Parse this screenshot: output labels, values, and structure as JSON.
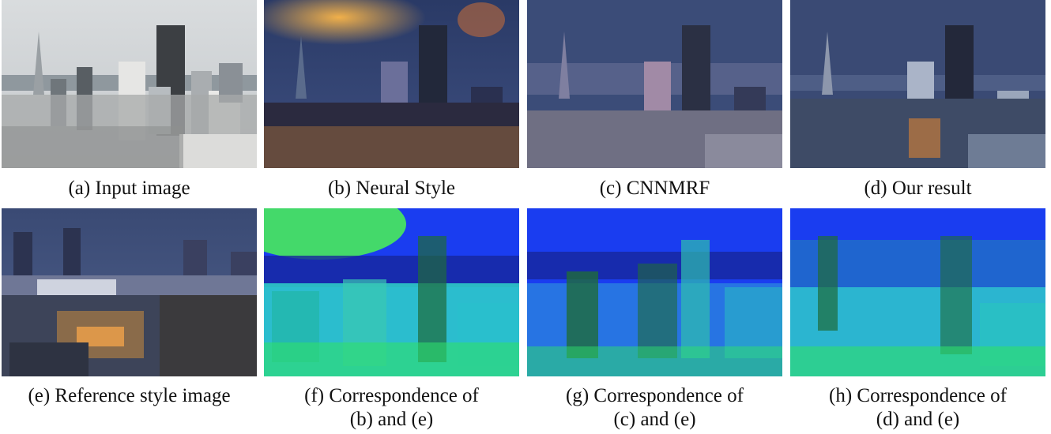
{
  "figure": {
    "panels": [
      {
        "id": "a",
        "caption": [
          "(a) Input image"
        ],
        "kind": "photo",
        "tone": "day"
      },
      {
        "id": "b",
        "caption": [
          "(b) Neural Style"
        ],
        "kind": "photo",
        "tone": "neural"
      },
      {
        "id": "c",
        "caption": [
          "(c) CNNMRF"
        ],
        "kind": "photo",
        "tone": "cnnmrf"
      },
      {
        "id": "d",
        "caption": [
          "(d) Our result"
        ],
        "kind": "photo",
        "tone": "ours"
      },
      {
        "id": "e",
        "caption": [
          "(e) Reference style image"
        ],
        "kind": "photo",
        "tone": "night"
      },
      {
        "id": "f",
        "caption": [
          "(f) Correspondence of",
          "(b) and (e)"
        ],
        "kind": "correspondence",
        "tone": "f"
      },
      {
        "id": "g",
        "caption": [
          "(g) Correspondence of",
          "(c) and (e)"
        ],
        "kind": "correspondence",
        "tone": "g"
      },
      {
        "id": "h",
        "caption": [
          "(h) Correspondence of",
          "(d) and (e)"
        ],
        "kind": "correspondence",
        "tone": "h"
      }
    ],
    "colors": {
      "blue": "#1a3df0",
      "green": "#2ee06a",
      "cyan": "#2fd3c8",
      "dark_green": "#1f6b3a"
    }
  }
}
